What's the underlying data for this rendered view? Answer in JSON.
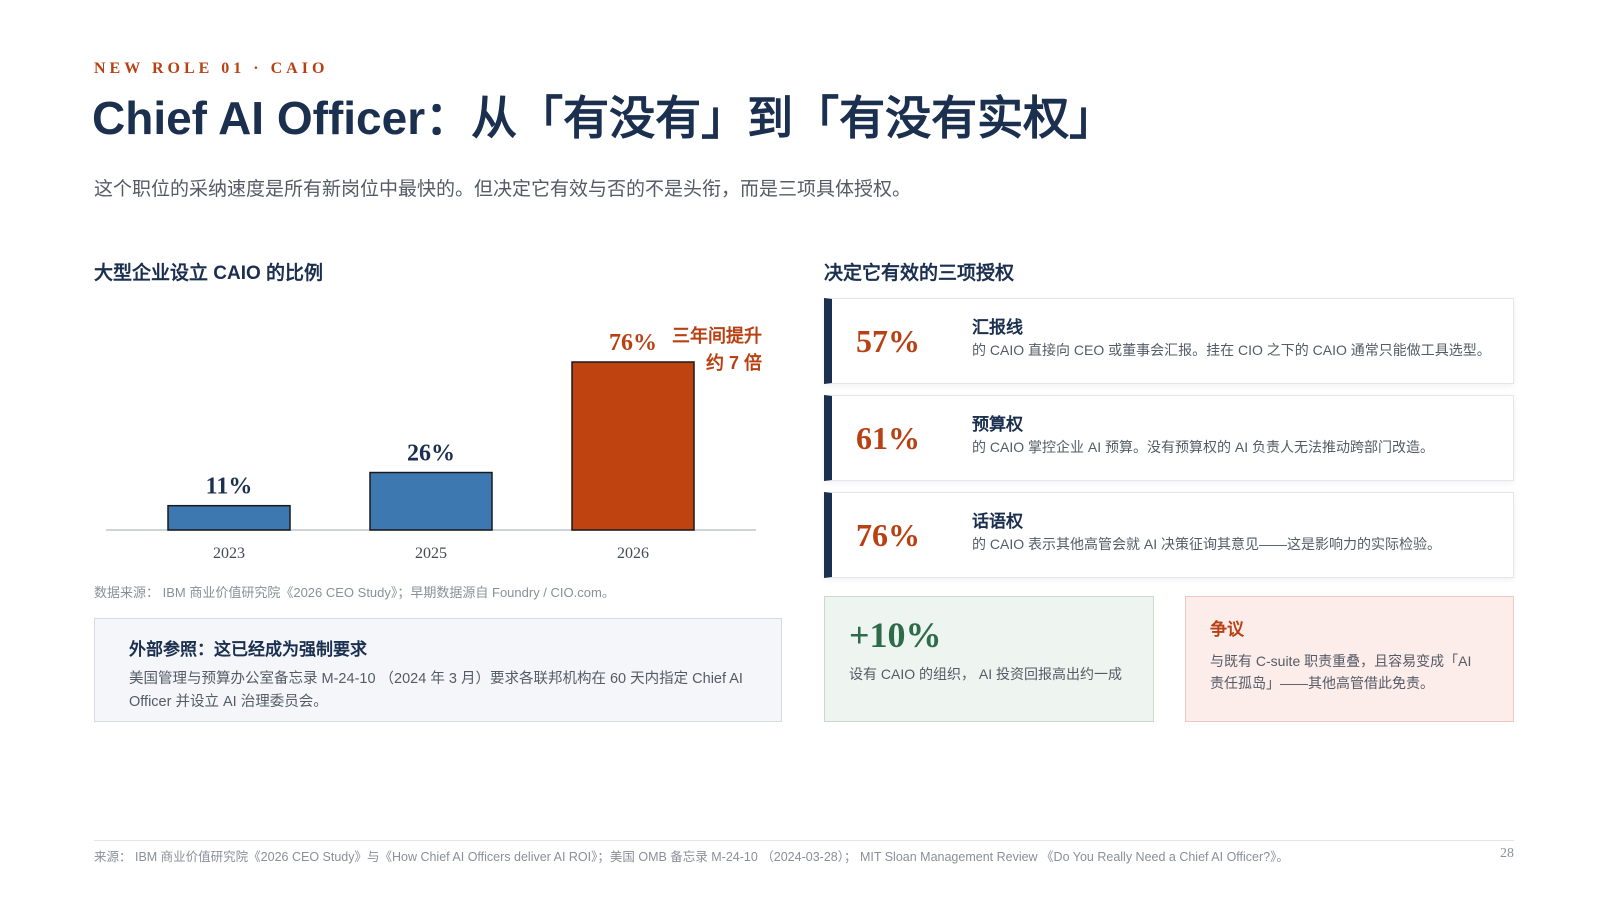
{
  "header": {
    "kicker": "NEW ROLE 01 · CAIO",
    "title": "Chief AI Officer：从「有没有」到「有没有实权」",
    "subtitle": "这个职位的采纳速度是所有新岗位中最快的。但决定它有效与否的不是头衔，而是三项具体授权。"
  },
  "left": {
    "heading": "大型企业设立 CAIO 的比例",
    "source_note": "数据来源： IBM 商业价值研究院《2026 CEO Study》；早期数据源自 Foundry / CIO.com。",
    "reference": {
      "title": "外部参照：这已经成为强制要求",
      "body": "美国管理与预算办公室备忘录 M-24-10 （2024 年 3 月）要求各联邦机构在 60 天内指定 Chief AI Officer 并设立 AI 治理委员会。"
    }
  },
  "chart_data": {
    "type": "bar",
    "categories": [
      "2023",
      "2025",
      "2026"
    ],
    "values": [
      11,
      26,
      76
    ],
    "data_labels": [
      "11%",
      "26%",
      "76%"
    ],
    "colors": [
      "#3d78b0",
      "#3d78b0",
      "#bf4310"
    ],
    "annotation": [
      "三年间提升",
      "约 7 倍"
    ],
    "ylim": [
      0,
      76
    ]
  },
  "right": {
    "heading": "决定它有效的三项授权",
    "authorities": [
      {
        "pct": "57%",
        "name": "汇报线",
        "desc": "的 CAIO 直接向 CEO 或董事会汇报。挂在 CIO 之下的 CAIO 通常只能做工具选型。"
      },
      {
        "pct": "61%",
        "name": "预算权",
        "desc": "的 CAIO 掌控企业 AI 预算。没有预算权的 AI 负责人无法推动跨部门改造。"
      },
      {
        "pct": "76%",
        "name": "话语权",
        "desc": "的 CAIO 表示其他高管会就 AI 决策征询其意见——这是影响力的实际检验。"
      }
    ],
    "roi": {
      "value": "+10%",
      "desc": "设有 CAIO 的组织， AI 投资回报高出约一成"
    },
    "dispute": {
      "title": "争议",
      "desc": "与既有 C-suite 职责重叠，且容易变成「AI 责任孤岛」——其他高管借此免责。"
    }
  },
  "footer": {
    "source": "来源： IBM 商业价值研究院《2026 CEO Study》与《How Chief AI Officers deliver AI ROI》；美国 OMB 备忘录 M-24-10 （2024-03-28）； MIT Sloan Management Review 《Do You Really Need a Chief AI Officer?》。",
    "page": "28"
  },
  "colors": {
    "navy": "#1b2f4f",
    "accent": "#b84114",
    "bar_blue": "#3d78b0",
    "bar_orange": "#bf4310",
    "roi_green": "#2d6b4a"
  }
}
